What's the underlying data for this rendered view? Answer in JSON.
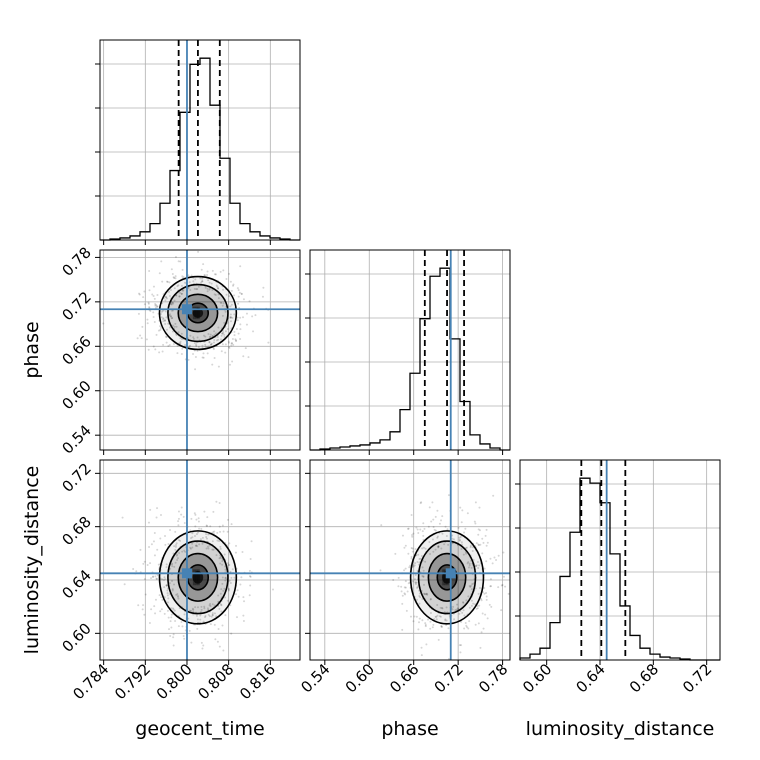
{
  "chart_data": {
    "type": "corner",
    "parameters": [
      "geocent_time",
      "phase",
      "luminosity_distance"
    ],
    "truths": {
      "geocent_time": 0.8,
      "phase": 0.71,
      "luminosity_distance": 0.645
    },
    "quantiles": {
      "geocent_time": [
        0.7984,
        0.8021,
        0.8063
      ],
      "phase": [
        0.675,
        0.705,
        0.728
      ],
      "luminosity_distance": [
        0.626,
        0.641,
        0.659
      ]
    },
    "ranges": {
      "geocent_time": [
        0.7833,
        0.8217
      ],
      "phase": [
        0.52,
        0.79
      ],
      "luminosity_distance": [
        0.58,
        0.73
      ]
    },
    "ticks": {
      "geocent_time": [
        "0.784",
        "0.792",
        "0.800",
        "0.808",
        "0.816"
      ],
      "phase": [
        "0.54",
        "0.60",
        "0.66",
        "0.72",
        "0.78"
      ],
      "luminosity_distance": [
        "0.60",
        "0.64",
        "0.68",
        "0.72"
      ]
    },
    "histograms": {
      "geocent_time": {
        "edges_start": 0.7833,
        "bin_width": 0.00192,
        "counts": [
          0,
          1,
          2,
          4,
          8,
          16,
          36,
          68,
          125,
          172,
          178,
          132,
          80,
          36,
          16,
          8,
          4,
          2,
          1,
          0
        ]
      },
      "phase": {
        "edges_start": 0.52,
        "bin_width": 0.0135,
        "counts": [
          0,
          1,
          2,
          3,
          4,
          5,
          7,
          10,
          18,
          40,
          76,
          130,
          172,
          180,
          110,
          48,
          15,
          6,
          2,
          0
        ]
      },
      "luminosity_distance": {
        "edges_start": 0.58,
        "bin_width": 0.0075,
        "counts": [
          2,
          6,
          12,
          38,
          85,
          130,
          185,
          180,
          160,
          108,
          55,
          25,
          12,
          6,
          3,
          2,
          1,
          0,
          0,
          0
        ]
      }
    },
    "pairs": [
      {
        "x": "geocent_time",
        "y": "phase",
        "mean": [
          0.8021,
          0.705
        ],
        "sigma": [
          0.0036,
          0.024
        ]
      },
      {
        "x": "geocent_time",
        "y": "luminosity_distance",
        "mean": [
          0.8021,
          0.642
        ],
        "sigma": [
          0.0036,
          0.017
        ]
      },
      {
        "x": "phase",
        "y": "luminosity_distance",
        "mean": [
          0.705,
          0.642
        ],
        "sigma": [
          0.024,
          0.017
        ]
      }
    ],
    "truth_color": "#4682b4",
    "hist_color": "#000000",
    "grid": true
  }
}
